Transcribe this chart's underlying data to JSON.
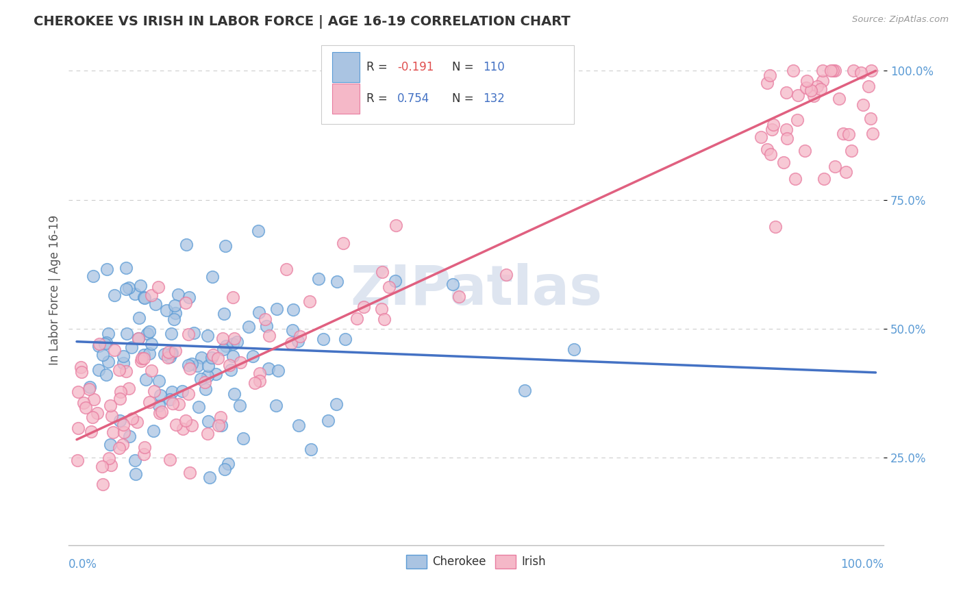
{
  "title": "CHEROKEE VS IRISH IN LABOR FORCE | AGE 16-19 CORRELATION CHART",
  "source": "Source: ZipAtlas.com",
  "ylabel": "In Labor Force | Age 16-19",
  "cherokee_color": "#aac4e2",
  "cherokee_edge": "#5b9bd5",
  "irish_color": "#f5b8c8",
  "irish_edge": "#e87ca0",
  "line_cherokee": "#4472c4",
  "line_irish": "#e06080",
  "r_cherokee": "-0.191",
  "n_cherokee": "110",
  "r_irish": "0.754",
  "n_irish": "132",
  "r_color_neg": "#e05050",
  "r_color_pos": "#4472c4",
  "n_color": "#4472c4",
  "watermark_text": "ZIPatlas",
  "watermark_color": "#d0daea",
  "background": "#ffffff",
  "grid_color": "#cccccc",
  "ytick_color": "#5b9bd5",
  "xtick_color": "#5b9bd5",
  "ylabel_color": "#555555",
  "source_color": "#999999",
  "title_color": "#333333"
}
